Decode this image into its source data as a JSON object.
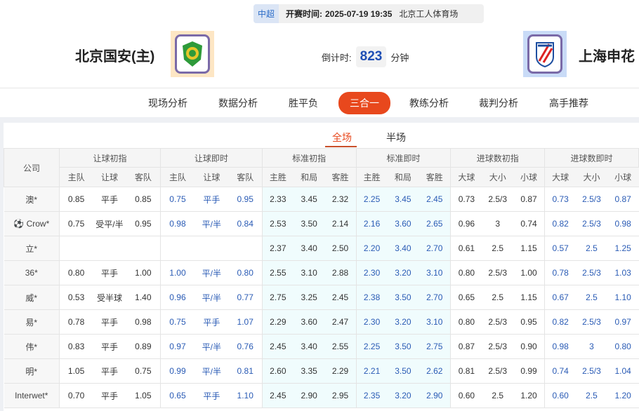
{
  "header": {
    "league": "中超",
    "kickoff_label": "开赛时间:",
    "kickoff": "2025-07-19 19:35",
    "venue": "北京工人体育场",
    "home_team": "北京国安(主)",
    "away_team": "上海申花",
    "countdown_label": "倒计时:",
    "countdown_value": "823",
    "countdown_unit": "分钟"
  },
  "nav": {
    "items": [
      "现场分析",
      "数据分析",
      "胜平负",
      "三合一",
      "教练分析",
      "裁判分析",
      "高手推荐"
    ],
    "active": "三合一"
  },
  "subtabs": {
    "items": [
      "全场",
      "半场"
    ],
    "active": "全场"
  },
  "colors": {
    "accent": "#e8481d",
    "live_text": "#2a5bb5"
  },
  "table": {
    "company_header": "公司",
    "groups": [
      "让球初指",
      "让球即时",
      "标准初指",
      "标准即时",
      "进球数初指",
      "进球数即时"
    ],
    "subheaders": [
      [
        "主队",
        "让球",
        "客队"
      ],
      [
        "主队",
        "让球",
        "客队"
      ],
      [
        "主胜",
        "和局",
        "客胜"
      ],
      [
        "主胜",
        "和局",
        "客胜"
      ],
      [
        "大球",
        "大小",
        "小球"
      ],
      [
        "大球",
        "大小",
        "小球"
      ]
    ],
    "rows": [
      {
        "company": "澳*",
        "cells": [
          "0.85",
          "平手",
          "0.85",
          "0.75",
          "平手",
          "0.95",
          "2.33",
          "3.45",
          "2.32",
          "2.25",
          "3.45",
          "2.45",
          "0.73",
          "2.5/3",
          "0.87",
          "0.73",
          "2.5/3",
          "0.87"
        ]
      },
      {
        "company": "Crow*",
        "icon": "soccer-ball-icon",
        "cells": [
          "0.75",
          "受平/半",
          "0.95",
          "0.98",
          "平/半",
          "0.84",
          "2.53",
          "3.50",
          "2.14",
          "2.16",
          "3.60",
          "2.65",
          "0.96",
          "3",
          "0.74",
          "0.82",
          "2.5/3",
          "0.98"
        ]
      },
      {
        "company": "立*",
        "cells": [
          "",
          "",
          "",
          "",
          "",
          "",
          "2.37",
          "3.40",
          "2.50",
          "2.20",
          "3.40",
          "2.70",
          "0.61",
          "2.5",
          "1.15",
          "0.57",
          "2.5",
          "1.25"
        ]
      },
      {
        "company": "36*",
        "cells": [
          "0.80",
          "平手",
          "1.00",
          "1.00",
          "平/半",
          "0.80",
          "2.55",
          "3.10",
          "2.88",
          "2.30",
          "3.20",
          "3.10",
          "0.80",
          "2.5/3",
          "1.00",
          "0.78",
          "2.5/3",
          "1.03"
        ]
      },
      {
        "company": "威*",
        "cells": [
          "0.53",
          "受半球",
          "1.40",
          "0.96",
          "平/半",
          "0.77",
          "2.75",
          "3.25",
          "2.45",
          "2.38",
          "3.50",
          "2.70",
          "0.65",
          "2.5",
          "1.15",
          "0.67",
          "2.5",
          "1.10"
        ]
      },
      {
        "company": "易*",
        "cells": [
          "0.78",
          "平手",
          "0.98",
          "0.75",
          "平手",
          "1.07",
          "2.29",
          "3.60",
          "2.47",
          "2.30",
          "3.20",
          "3.10",
          "0.80",
          "2.5/3",
          "0.95",
          "0.82",
          "2.5/3",
          "0.97"
        ]
      },
      {
        "company": "伟*",
        "cells": [
          "0.83",
          "平手",
          "0.89",
          "0.97",
          "平/半",
          "0.76",
          "2.45",
          "3.40",
          "2.55",
          "2.25",
          "3.50",
          "2.75",
          "0.87",
          "2.5/3",
          "0.90",
          "0.98",
          "3",
          "0.80"
        ]
      },
      {
        "company": "明*",
        "cells": [
          "1.05",
          "平手",
          "0.75",
          "0.99",
          "平/半",
          "0.81",
          "2.60",
          "3.35",
          "2.29",
          "2.21",
          "3.50",
          "2.62",
          "0.81",
          "2.5/3",
          "0.99",
          "0.74",
          "2.5/3",
          "1.04"
        ]
      },
      {
        "company": "Interwet*",
        "cells": [
          "0.70",
          "平手",
          "1.05",
          "0.65",
          "平手",
          "1.10",
          "2.45",
          "2.90",
          "2.95",
          "2.35",
          "3.20",
          "2.90",
          "0.60",
          "2.5",
          "1.20",
          "0.60",
          "2.5",
          "1.20"
        ]
      }
    ]
  }
}
